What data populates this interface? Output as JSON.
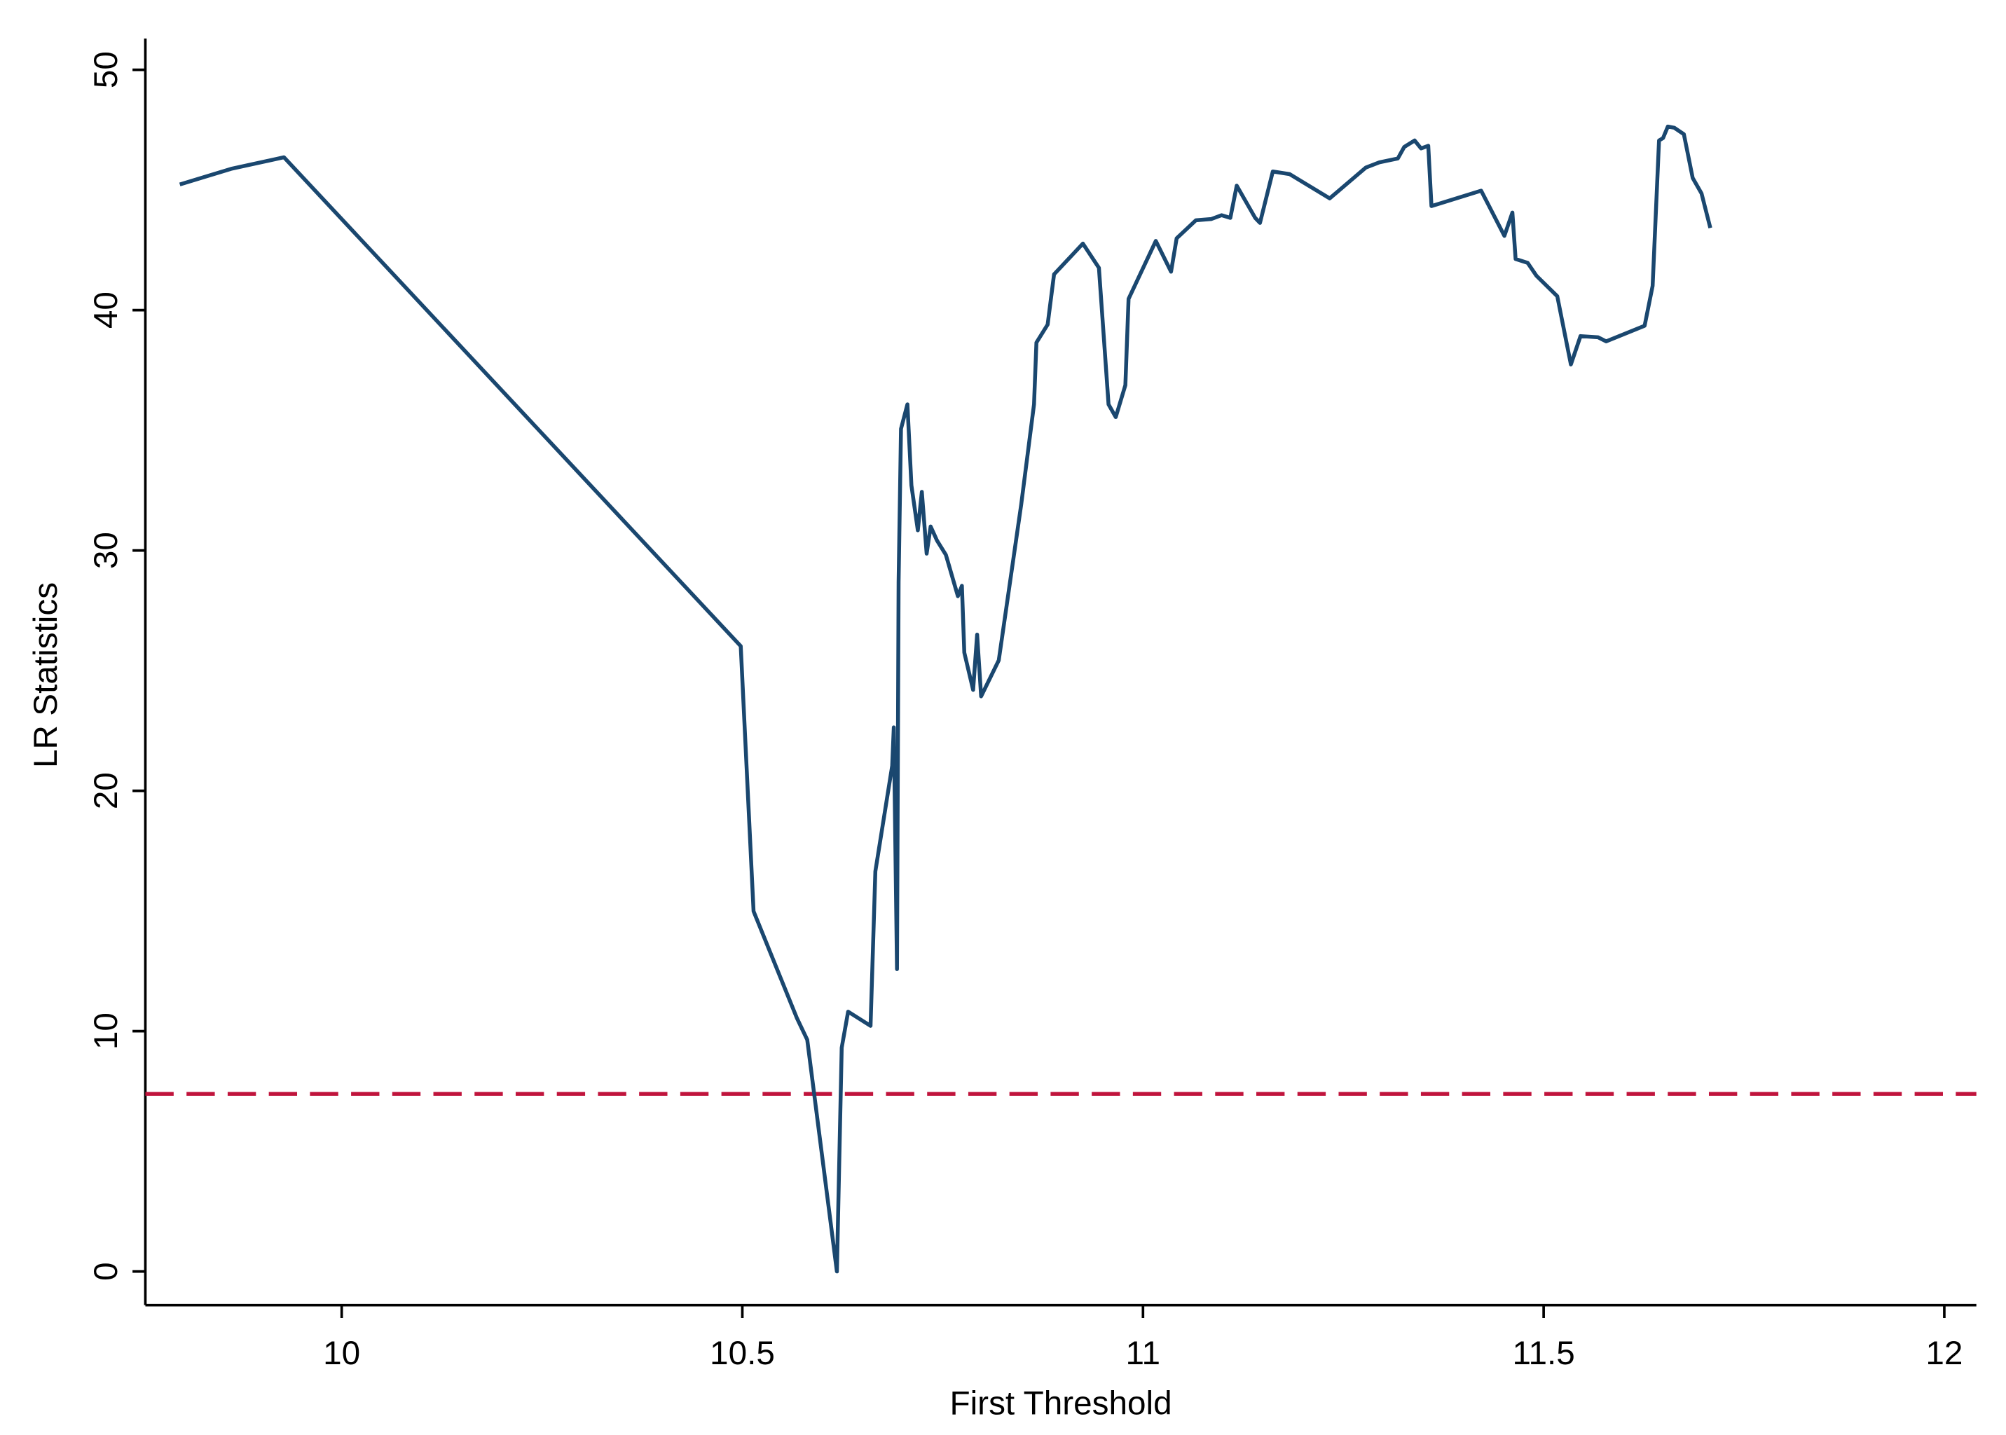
{
  "chart_data": {
    "type": "line",
    "x_label": "First Threshold",
    "y_label": "LR Statistics",
    "xlim": [
      9.755,
      12.04
    ],
    "ylim": [
      -1.4,
      51.3
    ],
    "xticks": [
      10,
      10.5,
      11,
      11.5,
      12
    ],
    "yticks": [
      0,
      10,
      20,
      30,
      40,
      50
    ],
    "grid": false,
    "reference_line": {
      "y": 7.39,
      "color": "#c0143c",
      "style": "dashed"
    },
    "x": [
      9.798,
      9.862,
      9.928,
      10.498,
      10.514,
      10.568,
      10.581,
      10.618,
      10.624,
      10.632,
      10.66,
      10.666,
      10.687,
      10.689,
      10.693,
      10.695,
      10.698,
      10.706,
      10.711,
      10.719,
      10.724,
      10.73,
      10.735,
      10.743,
      10.754,
      10.769,
      10.774,
      10.777,
      10.788,
      10.793,
      10.798,
      10.82,
      10.848,
      10.864,
      10.867,
      10.881,
      10.889,
      10.925,
      10.945,
      10.957,
      10.966,
      10.978,
      10.982,
      11.016,
      11.035,
      11.042,
      11.066,
      11.085,
      11.098,
      11.109,
      11.117,
      11.14,
      11.146,
      11.162,
      11.183,
      11.233,
      11.278,
      11.295,
      11.318,
      11.326,
      11.339,
      11.347,
      11.356,
      11.36,
      11.422,
      11.451,
      11.461,
      11.465,
      11.48,
      11.491,
      11.517,
      11.534,
      11.546,
      11.568,
      11.578,
      11.626,
      11.636,
      11.644,
      11.649,
      11.655,
      11.663,
      11.675,
      11.686,
      11.697,
      11.708
    ],
    "series": [
      {
        "name": "LR Statistics",
        "color": "#1a476f",
        "values": [
          45.23,
          45.88,
          46.36,
          26.02,
          14.99,
          10.55,
          9.64,
          0,
          9.31,
          10.81,
          10.22,
          16.65,
          21.04,
          22.64,
          12.58,
          28.69,
          35.06,
          36.08,
          32.71,
          30.84,
          32.44,
          29.87,
          31.0,
          30.41,
          29.82,
          28.1,
          28.53,
          25.75,
          24.2,
          26.5,
          23.93,
          25.43,
          31.91,
          36.08,
          38.65,
          39.4,
          41.49,
          42.77,
          41.76,
          36.08,
          35.55,
          36.88,
          40.47,
          42.88,
          41.6,
          42.99,
          43.74,
          43.79,
          43.95,
          43.84,
          45.18,
          43.84,
          43.63,
          45.77,
          45.66,
          44.65,
          45.93,
          46.15,
          46.31,
          46.79,
          47.06,
          46.73,
          46.84,
          44.33,
          44.97,
          43.09,
          44.06,
          42.13,
          41.97,
          41.43,
          40.58,
          37.74,
          38.92,
          38.87,
          38.7,
          39.35,
          41.01,
          47.06,
          47.16,
          47.64,
          47.59,
          47.32,
          45.5,
          44.86,
          43.42
        ]
      }
    ]
  }
}
